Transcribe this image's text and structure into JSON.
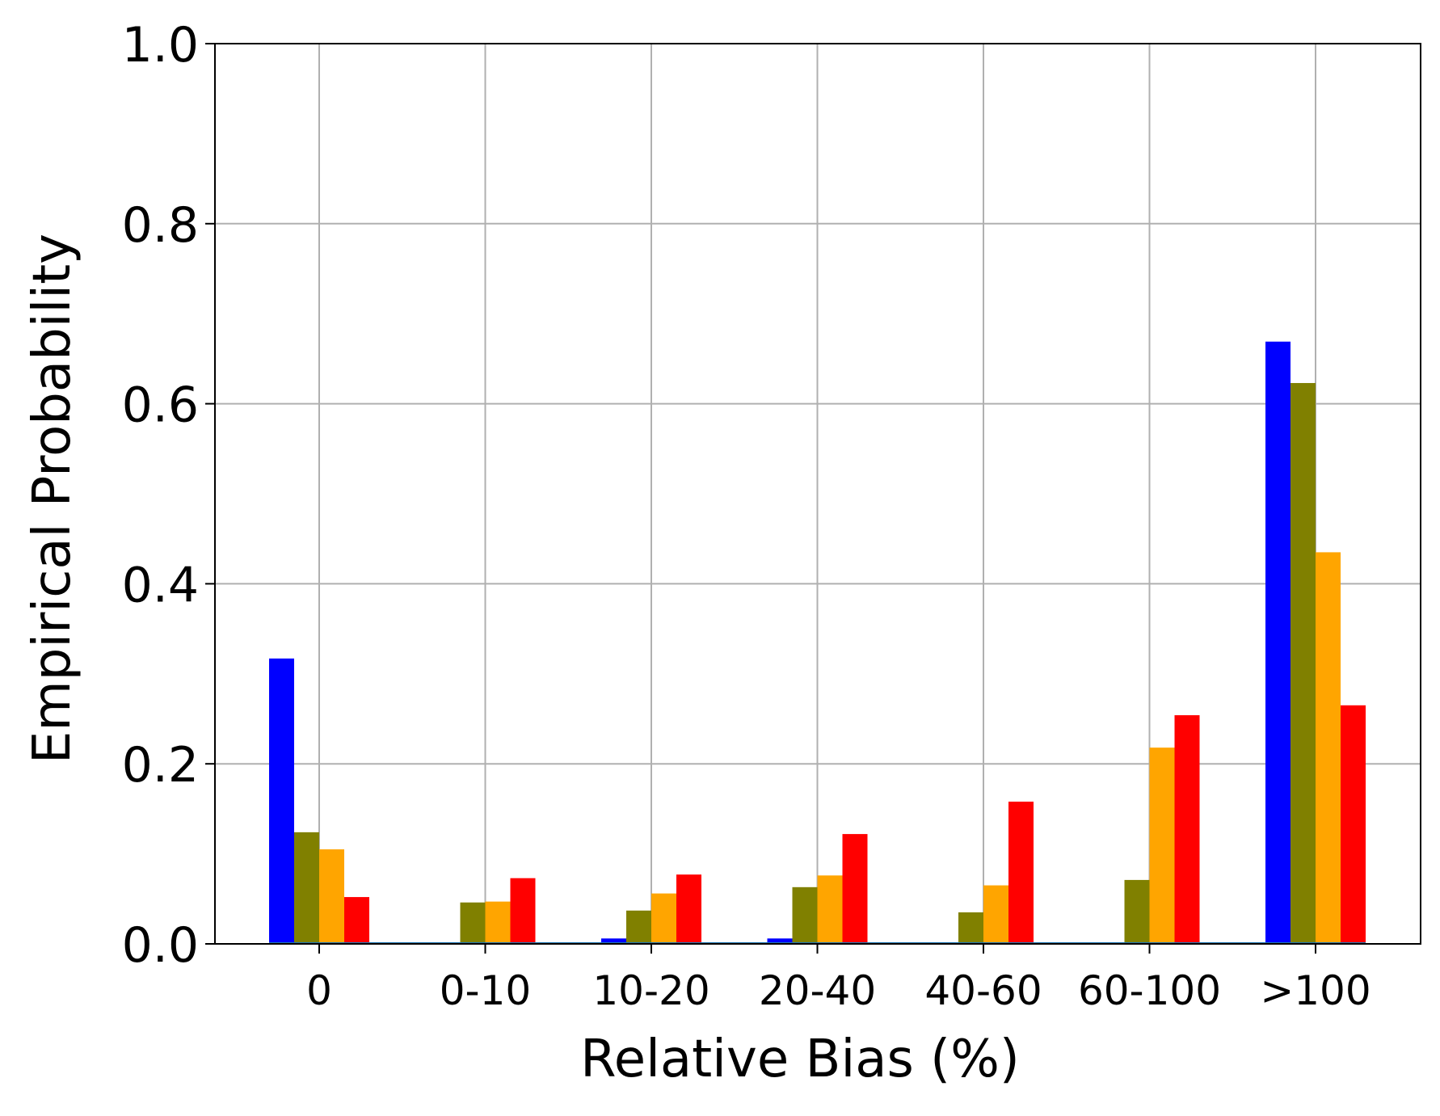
{
  "chart_data": {
    "type": "bar",
    "xlabel": "Relative Bias (%)",
    "ylabel": "Empirical Probability",
    "categories": [
      "0",
      "0-10",
      "10-20",
      "20-40",
      "40-60",
      "60-100",
      ">100"
    ],
    "ylim": [
      0,
      1.0
    ],
    "yticks": [
      "0.0",
      "0.2",
      "0.4",
      "0.6",
      "0.8",
      "1.0"
    ],
    "grid": true,
    "series": [
      {
        "color": "#0000ff",
        "values": [
          0.317,
          0.0,
          0.006,
          0.006,
          0.0,
          0.0,
          0.669
        ]
      },
      {
        "color": "#808000",
        "values": [
          0.124,
          0.046,
          0.037,
          0.063,
          0.035,
          0.071,
          0.623
        ]
      },
      {
        "color": "#ffa500",
        "values": [
          0.105,
          0.047,
          0.056,
          0.076,
          0.065,
          0.218,
          0.435
        ]
      },
      {
        "color": "#ff0000",
        "values": [
          0.052,
          0.073,
          0.077,
          0.122,
          0.158,
          0.254,
          0.265
        ]
      }
    ],
    "baseline_color": "#1f77b4"
  }
}
